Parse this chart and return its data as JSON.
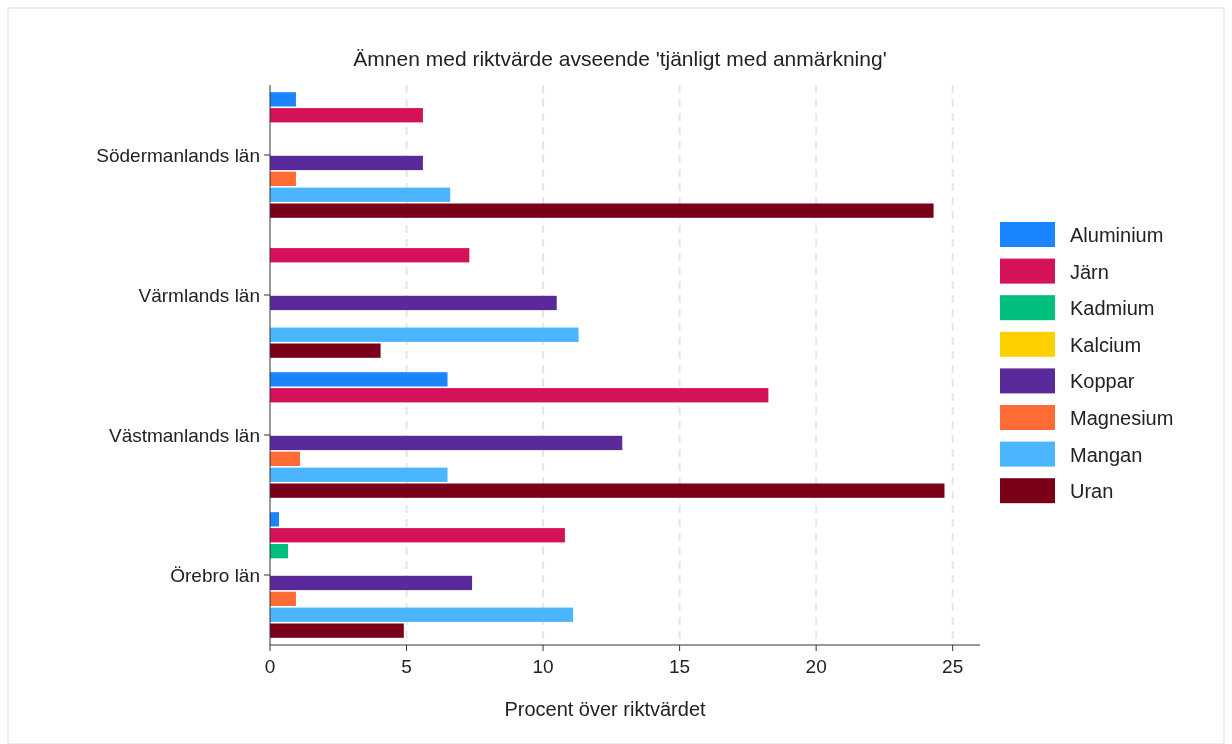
{
  "chart_data": {
    "type": "bar",
    "orientation": "horizontal",
    "title": "Ämnen med riktvärde avseende 'tjänligt med anmärkning'",
    "xlabel": "Procent över riktvärdet",
    "categories": [
      "Södermanlands län",
      "Värmlands län",
      "Västmanlands län",
      "Örebro län"
    ],
    "series": [
      {
        "name": "Aluminium",
        "color": "#1a85ff",
        "values": [
          0.95,
          null,
          6.5,
          0.33
        ]
      },
      {
        "name": "Järn",
        "color": "#d41159",
        "values": [
          5.6,
          7.3,
          18.25,
          10.8
        ]
      },
      {
        "name": "Kadmium",
        "color": "#00bf7d",
        "values": [
          null,
          null,
          null,
          0.66
        ]
      },
      {
        "name": "Kalcium",
        "color": "#ffd000",
        "values": [
          null,
          null,
          null,
          null
        ]
      },
      {
        "name": "Koppar",
        "color": "#5b2a9a",
        "values": [
          5.6,
          10.5,
          12.9,
          7.4
        ]
      },
      {
        "name": "Magnesium",
        "color": "#ff6b35",
        "values": [
          0.95,
          null,
          1.1,
          0.95
        ]
      },
      {
        "name": "Mangan",
        "color": "#4cb5ff",
        "values": [
          6.6,
          11.3,
          6.5,
          11.1
        ]
      },
      {
        "name": "Uran",
        "color": "#7a0019",
        "values": [
          24.3,
          4.05,
          24.7,
          4.9
        ]
      }
    ],
    "xlim": [
      0,
      26
    ],
    "xticks": [
      0,
      5,
      10,
      15,
      20,
      25
    ],
    "grid": "x",
    "legend": "right"
  }
}
